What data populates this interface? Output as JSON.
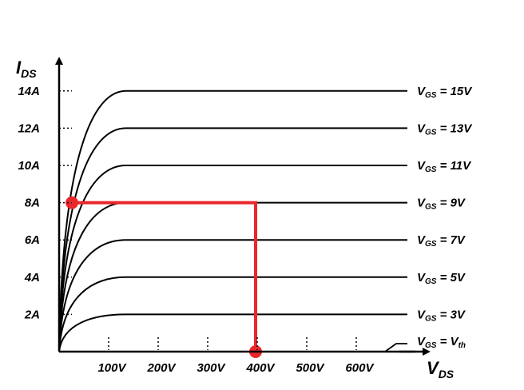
{
  "chart_data": {
    "type": "line",
    "title": "",
    "xlabel": {
      "main": "V",
      "sub": "DS"
    },
    "ylabel": {
      "main": "I",
      "sub": "DS"
    },
    "x_ticks": [
      "100V",
      "200V",
      "300V",
      "400V",
      "500V",
      "600V"
    ],
    "y_ticks": [
      "2A",
      "4A",
      "6A",
      "8A",
      "10A",
      "12A",
      "14A"
    ],
    "xlim": [
      0,
      700
    ],
    "ylim": [
      0,
      15
    ],
    "grid": false,
    "series": [
      {
        "name": "VGS = Vth",
        "label_main": "V",
        "label_sub": "GS",
        "label_eq": " = V",
        "label_val_sub": "th",
        "saturation_current": 0,
        "knee_voltage": 0
      },
      {
        "name": "VGS = 3V",
        "label_main": "V",
        "label_sub": "GS",
        "label_eq": " = 3V",
        "label_val_sub": "",
        "saturation_current": 2,
        "knee_voltage": 135
      },
      {
        "name": "VGS = 5V",
        "label_main": "V",
        "label_sub": "GS",
        "label_eq": " = 5V",
        "label_val_sub": "",
        "saturation_current": 4,
        "knee_voltage": 135
      },
      {
        "name": "VGS = 7V",
        "label_main": "V",
        "label_sub": "GS",
        "label_eq": " = 7V",
        "label_val_sub": "",
        "saturation_current": 6,
        "knee_voltage": 135
      },
      {
        "name": "VGS = 9V",
        "label_main": "V",
        "label_sub": "GS",
        "label_eq": " = 9V",
        "label_val_sub": "",
        "saturation_current": 8,
        "knee_voltage": 135
      },
      {
        "name": "VGS = 11V",
        "label_main": "V",
        "label_sub": "GS",
        "label_eq": " = 11V",
        "label_val_sub": "",
        "saturation_current": 10,
        "knee_voltage": 135
      },
      {
        "name": "VGS = 13V",
        "label_main": "V",
        "label_sub": "GS",
        "label_eq": " = 13V",
        "label_val_sub": "",
        "saturation_current": 12,
        "knee_voltage": 135
      },
      {
        "name": "VGS = 15V",
        "label_main": "V",
        "label_sub": "GS",
        "label_eq": " = 15V",
        "label_val_sub": "",
        "saturation_current": 14,
        "knee_voltage": 135
      }
    ],
    "operating_point": {
      "current": 8,
      "voltage": 400,
      "color": "#e8282b"
    },
    "colors": {
      "curves": "#000000",
      "highlight": "#e8282b"
    }
  }
}
